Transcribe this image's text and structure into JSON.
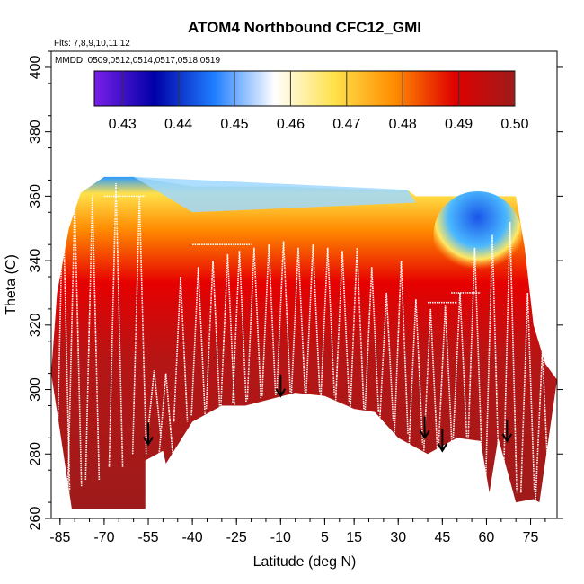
{
  "chart_data": {
    "type": "heatmap",
    "title": "ATOM4 Northbound CFC12_GMI",
    "flights_label": "Flts: 7,8,9,10,11,12",
    "dates_label": "MMDD: 0509,0512,0514,0517,0518,0519",
    "xlabel": "Latitude (deg N)",
    "ylabel": "Theta (C)",
    "xlim": [
      -88,
      84
    ],
    "ylim": [
      260,
      405
    ],
    "xticks": [
      -85,
      -70,
      -55,
      -40,
      -25,
      -10,
      5,
      15,
      30,
      45,
      60,
      75
    ],
    "xtick_labels": [
      "-85",
      "-70",
      "-55",
      "-40",
      "-25",
      "-10",
      "5",
      "15",
      "30",
      "45",
      "60",
      "75"
    ],
    "yticks": [
      260,
      280,
      300,
      320,
      340,
      360,
      380,
      400
    ],
    "ytick_labels": [
      "260",
      "280",
      "300",
      "320",
      "340",
      "360",
      "380",
      "400"
    ],
    "colorbar": {
      "vmin": 0.425,
      "vmax": 0.5,
      "ticks": [
        0.43,
        0.44,
        0.45,
        0.46,
        0.47,
        0.48,
        0.49,
        0.5
      ],
      "tick_labels": [
        "0.43",
        "0.44",
        "0.45",
        "0.46",
        "0.47",
        "0.48",
        "0.49",
        "0.50"
      ],
      "colors": [
        "#7a1fe8",
        "#0000a8",
        "#1f7fff",
        "#ffffff",
        "#ffe14a",
        "#ff8c00",
        "#e00000",
        "#9e1b1b"
      ]
    },
    "tropopause_arrows": [
      {
        "lat": -55,
        "theta": 283
      },
      {
        "lat": -10,
        "theta": 298
      },
      {
        "lat": 39,
        "theta": 285
      },
      {
        "lat": 45,
        "theta": 281
      },
      {
        "lat": 67,
        "theta": 284
      }
    ],
    "field_lower_boundary": [
      {
        "lat": -81,
        "theta": 263
      },
      {
        "lat": -56,
        "theta": 263
      },
      {
        "lat": -56,
        "theta": 278
      },
      {
        "lat": -50,
        "theta": 281
      },
      {
        "lat": -49,
        "theta": 277
      },
      {
        "lat": -40,
        "theta": 290
      },
      {
        "lat": -30,
        "theta": 295
      },
      {
        "lat": -22,
        "theta": 295
      },
      {
        "lat": -5,
        "theta": 299
      },
      {
        "lat": 5,
        "theta": 298
      },
      {
        "lat": 15,
        "theta": 294
      },
      {
        "lat": 22,
        "theta": 293
      },
      {
        "lat": 30,
        "theta": 285
      },
      {
        "lat": 40,
        "theta": 280
      },
      {
        "lat": 50,
        "theta": 285
      },
      {
        "lat": 58,
        "theta": 284
      },
      {
        "lat": 61,
        "theta": 268
      },
      {
        "lat": 64,
        "theta": 285
      },
      {
        "lat": 70,
        "theta": 265
      },
      {
        "lat": 76,
        "theta": 266
      },
      {
        "lat": 78,
        "theta": 265
      }
    ],
    "field_upper_boundary": [
      {
        "lat": -88,
        "theta": 305
      },
      {
        "lat": -86,
        "theta": 330
      },
      {
        "lat": -82,
        "theta": 350
      },
      {
        "lat": -78,
        "theta": 361
      },
      {
        "lat": -70,
        "theta": 366
      },
      {
        "lat": -60,
        "theta": 366
      },
      {
        "lat": -40,
        "theta": 363
      },
      {
        "lat": -10,
        "theta": 363
      },
      {
        "lat": 20,
        "theta": 362
      },
      {
        "lat": 33,
        "theta": 362
      },
      {
        "lat": 36,
        "theta": 360
      },
      {
        "lat": 50,
        "theta": 360
      },
      {
        "lat": 60,
        "theta": 360
      },
      {
        "lat": 65,
        "theta": 360
      },
      {
        "lat": 70,
        "theta": 360
      },
      {
        "lat": 73,
        "theta": 344
      },
      {
        "lat": 76,
        "theta": 320
      },
      {
        "lat": 80,
        "theta": 308
      },
      {
        "lat": 84,
        "theta": 303
      }
    ]
  }
}
